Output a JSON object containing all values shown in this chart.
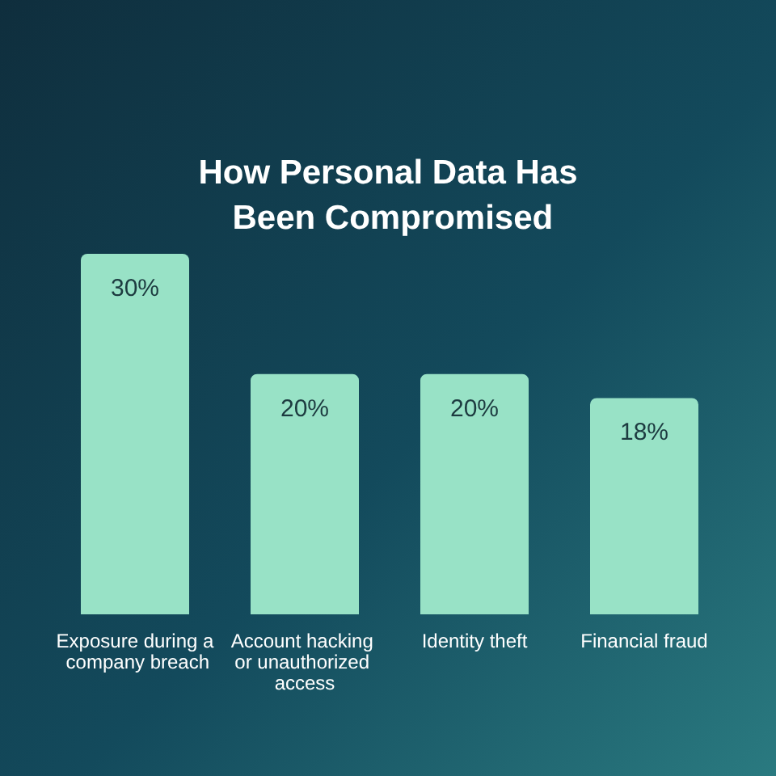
{
  "chart_data": {
    "type": "bar",
    "title": "How Personal Data Has Been Compromised",
    "categories": [
      "Exposure during a company breach",
      "Account hacking or unauthorized access",
      "Identity theft",
      "Financial fraud"
    ],
    "values": [
      30,
      20,
      20,
      18
    ],
    "value_labels": [
      "30%",
      "20%",
      "20%",
      "18%"
    ],
    "color": "#98e2c6"
  }
}
